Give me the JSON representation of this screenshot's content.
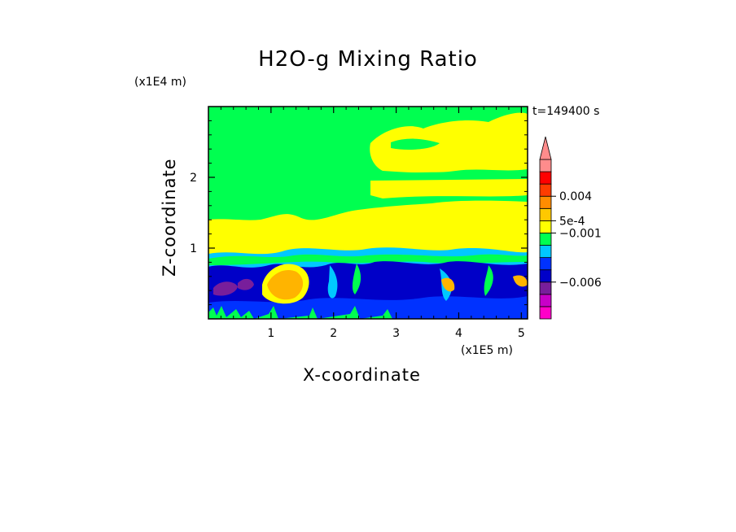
{
  "chart_data": {
    "type": "heatmap",
    "title": "H2O-g Mixing Ratio",
    "xlabel": "X-coordinate",
    "ylabel": "Z-coordinate",
    "x_unit": "(x1E5 m)",
    "y_unit": "(x1E4 m)",
    "time_label": "t=149400 s",
    "xlim": [
      0,
      5.1
    ],
    "ylim": [
      0,
      3
    ],
    "x_ticks": [
      "1",
      "2",
      "3",
      "4",
      "5"
    ],
    "y_ticks": [
      "1",
      "2"
    ],
    "colorbar": {
      "labels": [
        "0.004",
        "5e-4",
        "−0.001",
        "−0.006"
      ],
      "colors": [
        "#ff00c8",
        "#c800c8",
        "#781e9b",
        "#0000c8",
        "#0032ff",
        "#00c8ff",
        "#00ff50",
        "#ffff00",
        "#ffc800",
        "#ff8c00",
        "#ff3c00",
        "#ff0000",
        "#ff8c8c"
      ],
      "extend": "max"
    },
    "colors": {
      "background_band": "#00ff50",
      "upper_band": "#ffff00",
      "lower_band": "#0000c8",
      "blob": "#ffb400"
    }
  }
}
